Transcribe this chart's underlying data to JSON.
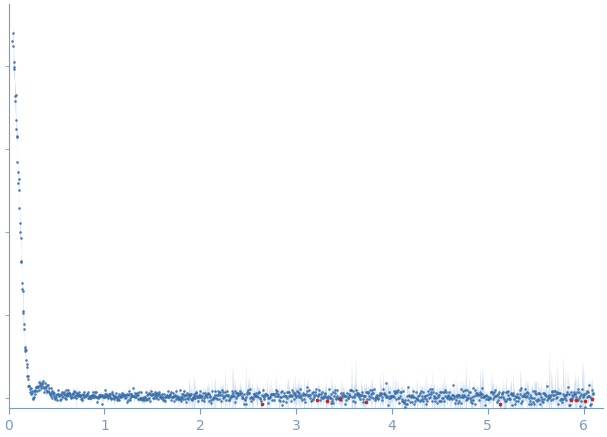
{
  "xlim": [
    0,
    6.2
  ],
  "ylim": [
    -0.025,
    0.95
  ],
  "xticks": [
    0,
    1,
    2,
    3,
    4,
    5,
    6
  ],
  "dot_color": "#3a6faa",
  "error_band_color": "#b8d0e8",
  "outlier_color": "#cc2222",
  "background_color": "#ffffff",
  "tick_color": "#7a9abf",
  "spine_color": "#7a9abf",
  "dot_size": 3.5,
  "figsize": [
    6.07,
    4.37
  ],
  "dpi": 100
}
